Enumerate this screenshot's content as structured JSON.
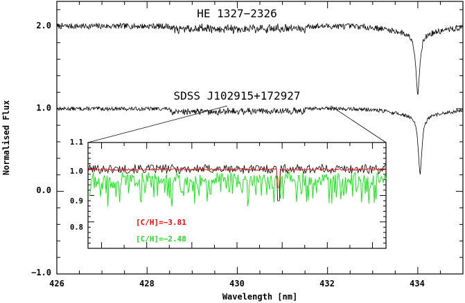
{
  "chart_data": {
    "type": "line",
    "xlabel": "Wavelength [nm]",
    "ylabel": "Normalised Flux",
    "xlim": [
      426,
      435
    ],
    "ylim": [
      -1.0,
      2.3
    ],
    "x_ticks": [
      "426",
      "428",
      "430",
      "432",
      "434"
    ],
    "y_ticks": [
      "−1.0",
      "0.0",
      "1.0",
      "2.0"
    ],
    "grid": false,
    "series": [
      {
        "name": "HE 1327−2326",
        "color": "#000000",
        "baseline": 2.0,
        "absorption_line": {
          "x": 434.0,
          "min": 1.18
        }
      },
      {
        "name": "SDSS J102915+172927",
        "color": "#000000",
        "baseline": 1.0,
        "absorption_line": {
          "x": 434.05,
          "min": 0.22
        }
      }
    ],
    "inset": {
      "xlim": [
        426.7,
        433.3
      ],
      "ylim": [
        0.7,
        1.1
      ],
      "y_ticks": [
        "0.8",
        "0.9",
        "1.0",
        "1.1"
      ],
      "zoom_of_range": [
        426.7,
        433.3
      ],
      "series": [
        {
          "color": "#000000",
          "baseline": 1.0
        },
        {
          "name": "[C/H]=−3.81",
          "color": "#ff0000",
          "baseline": 1.0
        },
        {
          "name": "[C/H]=−2.48",
          "color": "#00ee00",
          "baseline": 0.965
        }
      ],
      "annotations": [
        "[C/H]=−3.81",
        "[C/H]=−2.48"
      ]
    }
  }
}
